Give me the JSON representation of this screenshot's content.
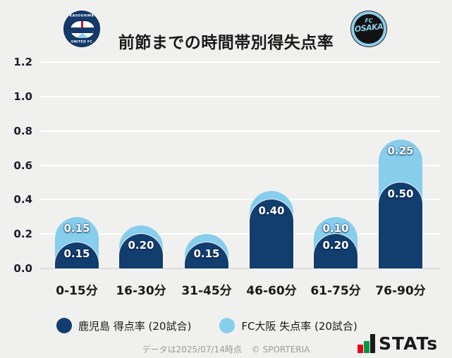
{
  "header": {
    "title": "前節までの時間帯別得失点率",
    "home_logo": {
      "name": "kagoshima-united-fc",
      "text_top": "KAGOSHIMA",
      "text_bottom": "UNITED FC"
    },
    "away_logo": {
      "name": "fc-osaka",
      "text_fc": "FC",
      "text_osaka": "OSAKA"
    }
  },
  "chart_data": {
    "type": "bar",
    "stacked": true,
    "title": "前節までの時間帯別得失点率",
    "categories": [
      "0-15分",
      "16-30分",
      "31-45分",
      "46-60分",
      "61-75分",
      "76-90分"
    ],
    "series": [
      {
        "name": "鹿児島 得点率 (20試合)",
        "color": "#123D6F",
        "values": [
          0.15,
          0.2,
          0.15,
          0.4,
          0.2,
          0.5
        ],
        "labels": [
          "0.15",
          "0.20",
          "0.15",
          "0.40",
          "0.20",
          "0.50"
        ]
      },
      {
        "name": "FC大阪 失点率 (20試合)",
        "color": "#87CDEC",
        "values": [
          0.15,
          0.05,
          0.05,
          0.05,
          0.1,
          0.25
        ],
        "labels": [
          "0.15",
          "",
          "",
          "",
          "0.10",
          "0.25"
        ]
      }
    ],
    "ylim": [
      0,
      1.2
    ],
    "yticks": [
      0.0,
      0.2,
      0.4,
      0.6,
      0.8,
      1.0,
      1.2
    ],
    "ytick_labels": [
      "0.0",
      "0.2",
      "0.4",
      "0.6",
      "0.8",
      "1.0",
      "1.2"
    ],
    "grid": true,
    "legend_position": "bottom"
  },
  "legend": {
    "items": [
      {
        "label": "鹿児島 得点率 (20試合)",
        "color": "#123D6F"
      },
      {
        "label": "FC大阪 失点率 (20試合)",
        "color": "#87CDEC"
      }
    ]
  },
  "footer": {
    "data_note": "データは2025/07/14時点",
    "copyright": "© SPORTERIA",
    "brand": "STATs"
  }
}
